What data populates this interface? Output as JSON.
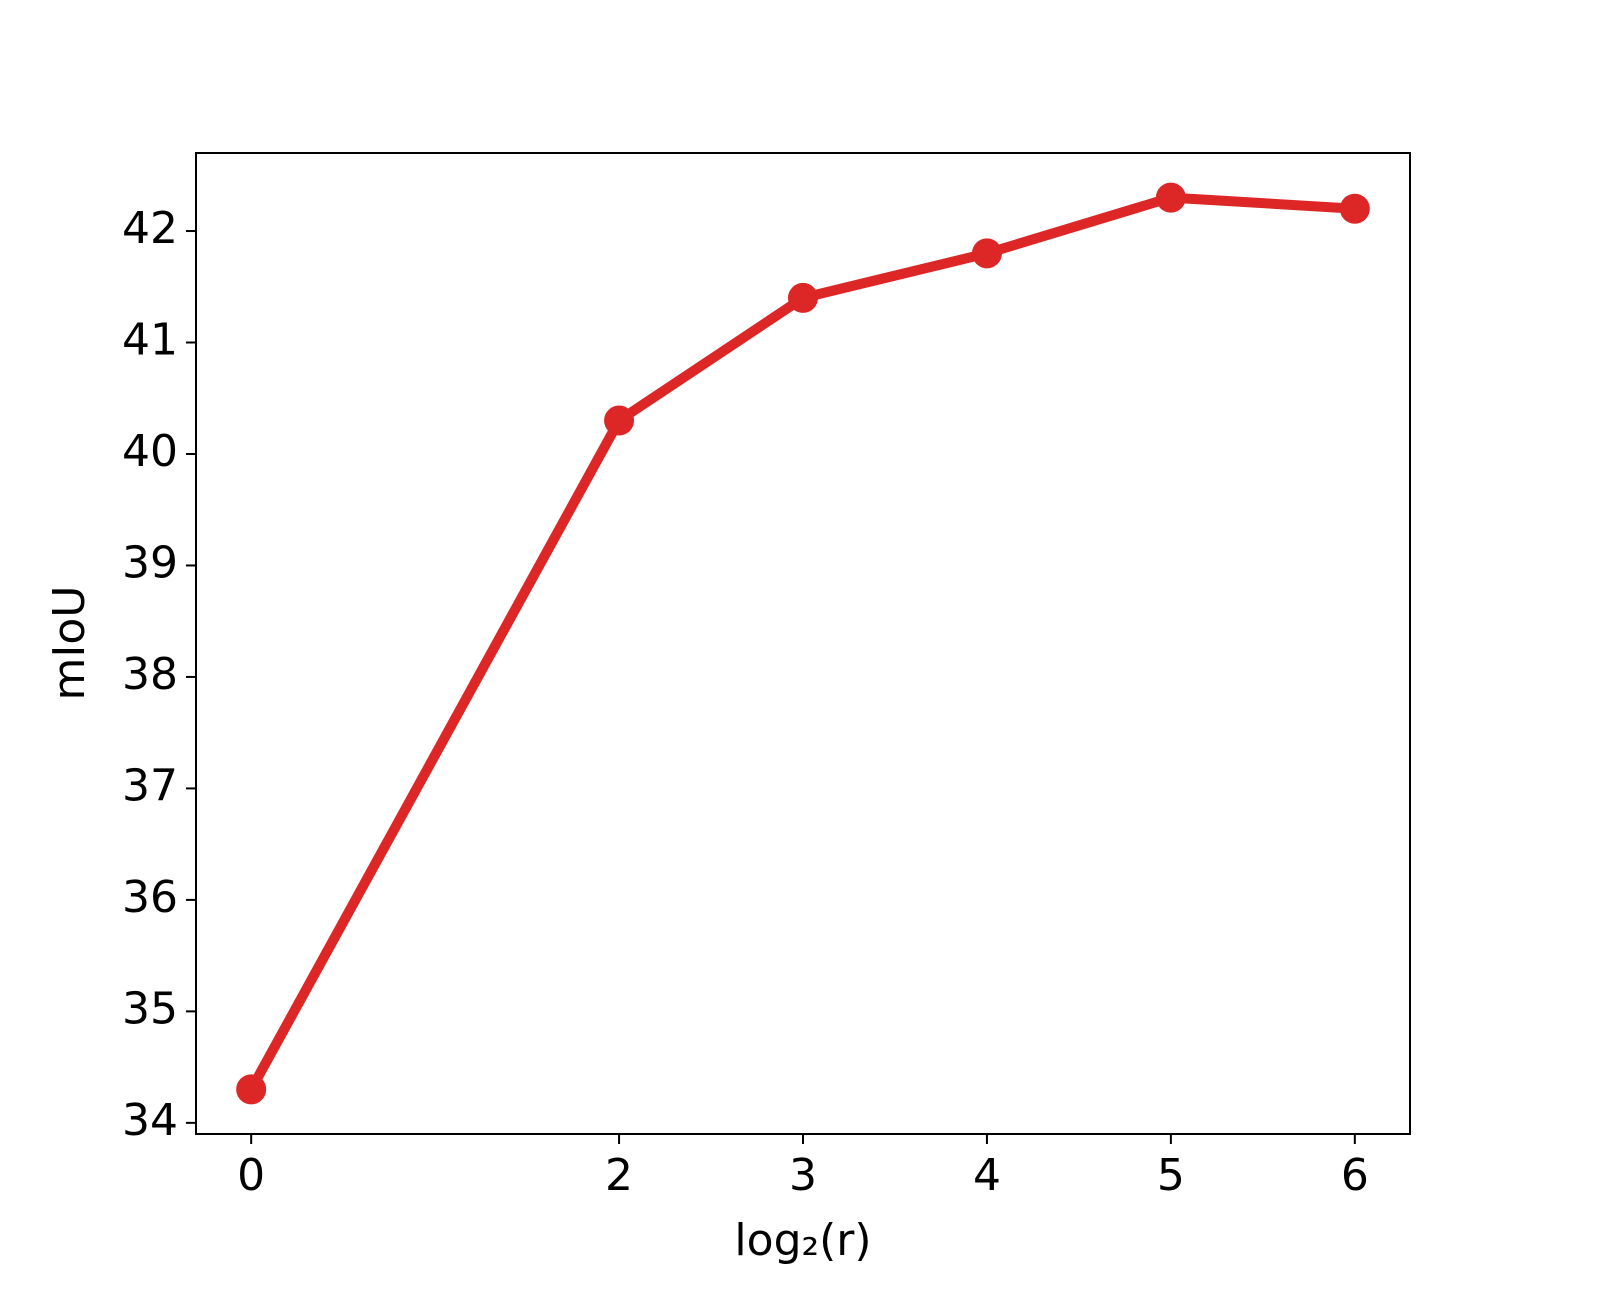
{
  "chart_data": {
    "type": "line",
    "x_label": "log₂(r)",
    "y_label": "mIoU",
    "x": [
      0,
      2,
      3,
      4,
      5,
      6
    ],
    "series": [
      {
        "color": "#dd2626",
        "values": [
          34.3,
          40.3,
          41.4,
          41.8,
          42.3,
          42.2
        ]
      }
    ],
    "xlim": [
      -0.3,
      6.3
    ],
    "xticks": [
      0,
      2,
      3,
      4,
      5,
      6
    ],
    "ylim": [
      33.9,
      42.7
    ],
    "yticks": [
      34,
      35,
      36,
      37,
      38,
      39,
      40,
      41,
      42
    ],
    "grid": false
  }
}
